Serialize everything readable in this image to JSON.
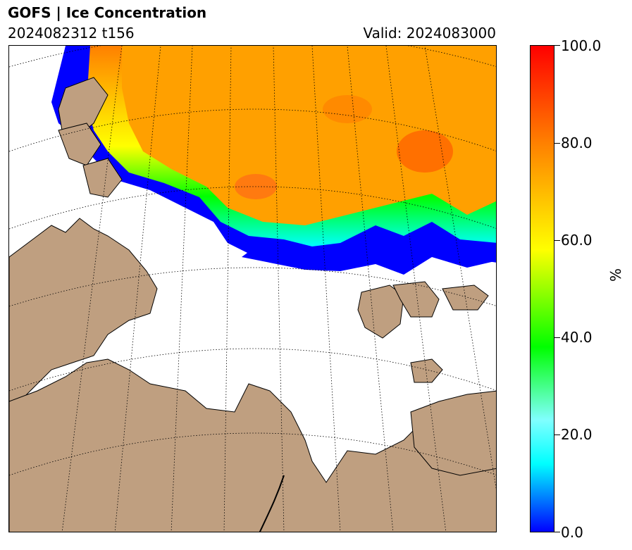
{
  "header": {
    "title": "GOFS  |  Ice Concentration",
    "run_info": "2024082312 t156",
    "valid": "Valid: 2024083000"
  },
  "map": {
    "land_color": "#bf9f80",
    "ocean_color": "#ffffff",
    "coastline_color": "#000000",
    "graticule_style": "dotted"
  },
  "colorbar": {
    "label": "%",
    "ticks": [
      "0.0",
      "20.0",
      "40.0",
      "60.0",
      "80.0",
      "100.0"
    ],
    "range": [
      0,
      100
    ],
    "colors": [
      "#0000ff",
      "#00ffff",
      "#00ff00",
      "#ffff00",
      "#ff8000",
      "#ff0000"
    ]
  }
}
